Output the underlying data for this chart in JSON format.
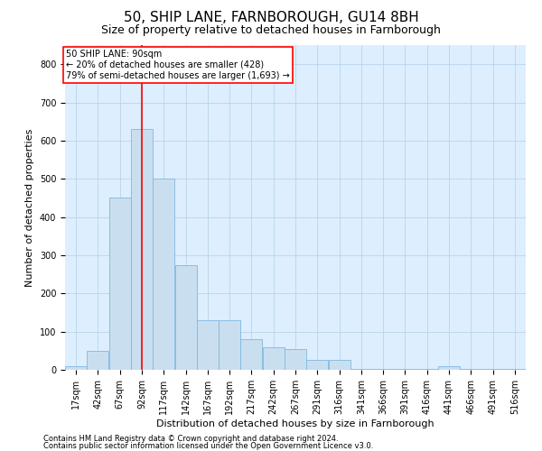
{
  "title": "50, SHIP LANE, FARNBOROUGH, GU14 8BH",
  "subtitle": "Size of property relative to detached houses in Farnborough",
  "xlabel": "Distribution of detached houses by size in Farnborough",
  "ylabel": "Number of detached properties",
  "footnote1": "Contains HM Land Registry data © Crown copyright and database right 2024.",
  "footnote2": "Contains public sector information licensed under the Open Government Licence v3.0.",
  "bar_color": "#c9dff0",
  "bar_edge_color": "#7fb8e0",
  "grid_color": "#b8d4ea",
  "background_color": "#ddeeff",
  "property_line_x": 92,
  "annotation_text": "50 SHIP LANE: 90sqm\n← 20% of detached houses are smaller (428)\n79% of semi-detached houses are larger (1,693) →",
  "categories": [
    "17sqm",
    "42sqm",
    "67sqm",
    "92sqm",
    "117sqm",
    "142sqm",
    "167sqm",
    "192sqm",
    "217sqm",
    "242sqm",
    "267sqm",
    "291sqm",
    "316sqm",
    "341sqm",
    "366sqm",
    "391sqm",
    "416sqm",
    "441sqm",
    "466sqm",
    "491sqm",
    "516sqm"
  ],
  "values": [
    10,
    50,
    450,
    630,
    500,
    275,
    130,
    130,
    80,
    60,
    55,
    25,
    25,
    3,
    3,
    3,
    3,
    10,
    3,
    3,
    3
  ],
  "bin_width": 25,
  "bin_starts": [
    4.5,
    29.5,
    54.5,
    79.5,
    104.5,
    129.5,
    154.5,
    179.5,
    204.5,
    229.5,
    254.5,
    279.5,
    304.5,
    329.5,
    354.5,
    379.5,
    404.5,
    429.5,
    454.5,
    479.5,
    504.5
  ],
  "xlim": [
    4.5,
    529.5
  ],
  "ylim": [
    0,
    850
  ],
  "yticks": [
    0,
    100,
    200,
    300,
    400,
    500,
    600,
    700,
    800
  ],
  "title_fontsize": 11,
  "subtitle_fontsize": 9,
  "axis_label_fontsize": 8,
  "tick_fontsize": 7,
  "footnote_fontsize": 6,
  "annotation_fontsize": 7
}
